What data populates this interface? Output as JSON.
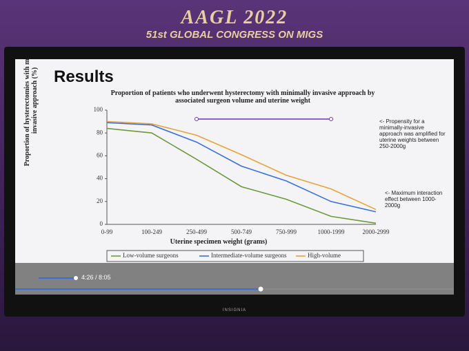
{
  "header": {
    "event": "AAGL 2022",
    "subtitle": "51st GLOBAL CONGRESS ON MIGS"
  },
  "slide": {
    "heading": "Results",
    "annotations": [
      "<- Propensity for a minimally-invasive approach was amplified for uterine weights between 250-2000g",
      "<- Maximum interaction effect between 1000-2000g"
    ]
  },
  "chart_data": {
    "type": "line",
    "title": "Proportion of patients who underwent hysterectomy with minimally invasive approach by associated surgeon volume and uterine weight",
    "x_label": "Uterine specimen weight (grams)",
    "y_label": "Proportion of hysterectomies with minimally invasive approach (%)",
    "categories": [
      "0-99",
      "100-249",
      "250-499",
      "500-749",
      "750-999",
      "1000-1999",
      "2000-2999"
    ],
    "series": [
      {
        "name": "Low-volume surgeons",
        "color": "#6a9a3a",
        "values": [
          84,
          80,
          57,
          33,
          22,
          7,
          1
        ]
      },
      {
        "name": "Intermediate-volume surgeons",
        "color": "#3a6fd8",
        "values": [
          89,
          87,
          72,
          51,
          38,
          20,
          11
        ]
      },
      {
        "name": "High-volume",
        "color": "#e8a23a",
        "values": [
          90,
          88,
          78,
          61,
          43,
          31,
          13
        ]
      }
    ],
    "ylim": [
      0,
      100
    ],
    "yticks": [
      0,
      20,
      40,
      60,
      80,
      100
    ],
    "grid": false
  },
  "player": {
    "time": "4:26 / 8:05"
  },
  "tv": {
    "brand": "INSIGNIA"
  }
}
